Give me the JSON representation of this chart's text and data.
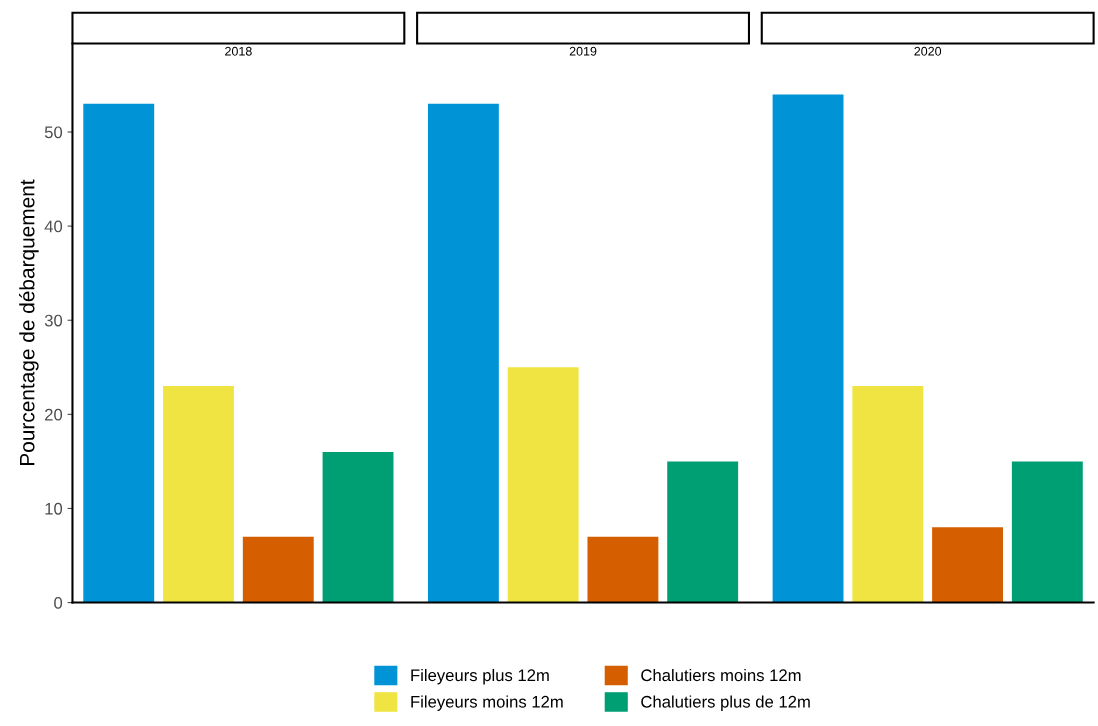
{
  "chart_data": {
    "type": "bar",
    "ylabel": "Pourcentage de débarquement",
    "categories": [
      "2018",
      "2019",
      "2020"
    ],
    "ylim": [
      0,
      59.4
    ],
    "yticks": [
      0,
      10,
      20,
      30,
      40,
      50
    ],
    "grid": false,
    "legend": "bottom",
    "series": [
      {
        "name": "Fileyeurs plus 12m",
        "color": "#0093d6",
        "values": [
          53,
          53,
          54
        ]
      },
      {
        "name": "Fileyeurs moins 12m",
        "color": "#f0e442",
        "values": [
          23,
          25,
          23
        ]
      },
      {
        "name": "Chalutiers moins 12m",
        "color": "#d55e00",
        "values": [
          7,
          7,
          8
        ]
      },
      {
        "name": "Chalutiers plus de 12m",
        "color": "#009e73",
        "values": [
          16,
          15,
          15
        ]
      }
    ]
  }
}
